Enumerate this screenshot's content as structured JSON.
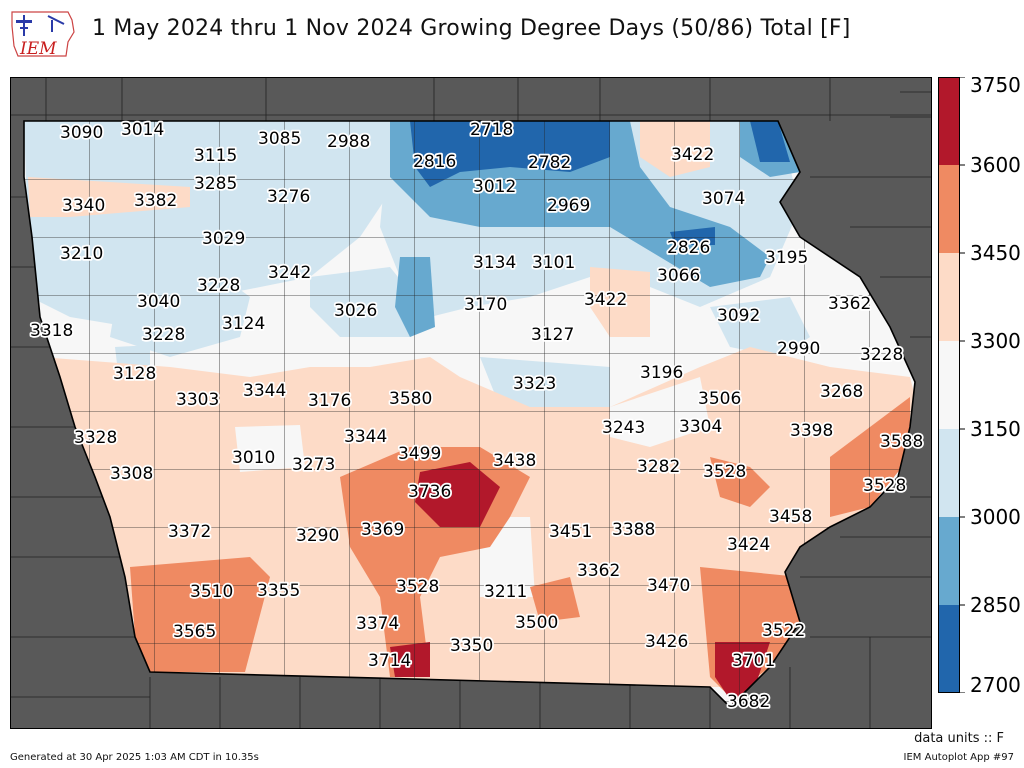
{
  "title": "1 May 2024 thru 1 Nov 2024 Growing Degree Days (50/86) Total [F]",
  "logo_text": "IEM",
  "units_label": "data units :: F",
  "generated_text": "Generated at 30 Apr 2025 1:03 AM CDT in 10.35s",
  "app_text": "IEM Autoplot App #97",
  "colors": {
    "background_land": "#595959",
    "county_line": "#222222",
    "bins": [
      "#2166ac",
      "#67a9cf",
      "#d1e5f0",
      "#f7f7f7",
      "#fddbc7",
      "#ef8a62",
      "#b2182b"
    ]
  },
  "chart_data": {
    "type": "heatmap",
    "variable": "Growing Degree Days (50/86) Total",
    "units": "F",
    "period": "1 May 2024 thru 1 Nov 2024",
    "colorbar": {
      "ticks": [
        2700,
        2850,
        3000,
        3150,
        3300,
        3450,
        3600,
        3750
      ],
      "range": [
        2700,
        3750
      ]
    },
    "station_values": [
      3090,
      3014,
      3115,
      3085,
      2988,
      2718,
      2816,
      2782,
      3422,
      3340,
      3382,
      3285,
      3276,
      3012,
      2969,
      3074,
      3210,
      3029,
      2826,
      3195,
      3242,
      3134,
      3101,
      3066,
      3228,
      3040,
      3170,
      3422,
      3362,
      3318,
      3228,
      3124,
      3026,
      3127,
      3092,
      2990,
      3228,
      3128,
      3303,
      3344,
      3176,
      3580,
      3323,
      3196,
      3506,
      3268,
      3328,
      3344,
      3243,
      3304,
      3398,
      3588,
      3010,
      3273,
      3499,
      3438,
      3282,
      3528,
      3308,
      3736,
      3528,
      3458,
      3372,
      3290,
      3369,
      3451,
      3388,
      3424,
      3362,
      3510,
      3355,
      3528,
      3211,
      3470,
      3565,
      3374,
      3500,
      3522,
      3350,
      3426,
      3714,
      3701,
      3682
    ]
  }
}
